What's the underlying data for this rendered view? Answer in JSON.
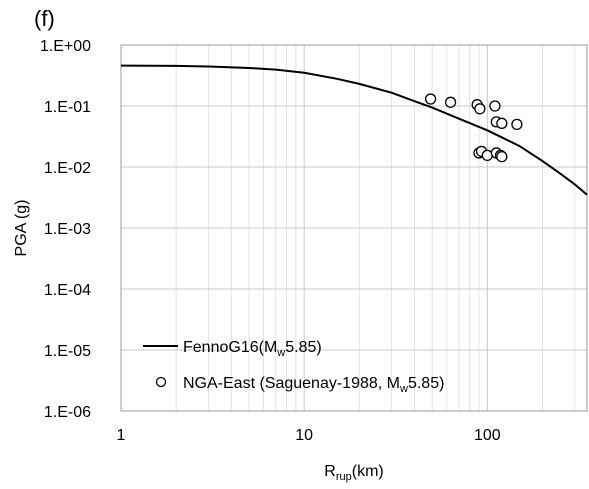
{
  "panel_label": "(f)",
  "chart_data": {
    "type": "scatter",
    "title": "",
    "xlabel": {
      "main": "R",
      "sub": "rup",
      "rest": "(km)"
    },
    "ylabel": "PGA (g)",
    "xscale": "log",
    "yscale": "log",
    "xlim": [
      1,
      350
    ],
    "ylim": [
      1e-06,
      1
    ],
    "x_ticks": [
      1,
      10,
      100
    ],
    "x_tick_labels": [
      "1",
      "10",
      "100"
    ],
    "y_ticks": [
      1,
      0.1,
      0.01,
      0.001,
      0.0001,
      1e-05,
      1e-06
    ],
    "y_tick_labels": [
      "1.E+00",
      "1.E-01",
      "1.E-02",
      "1.E-03",
      "1.E-04",
      "1.E-05",
      "1.E-06"
    ],
    "grid": true,
    "legend_position": "bottom-left",
    "series": [
      {
        "name": {
          "main": "FennoG16(M",
          "sub": "w",
          "rest": "5.85)"
        },
        "kind": "line",
        "color": "#000000",
        "x": [
          1,
          2,
          3,
          5,
          7,
          10,
          15,
          20,
          30,
          40,
          50,
          70,
          100,
          150,
          200,
          250,
          300,
          350
        ],
        "y": [
          0.46,
          0.455,
          0.445,
          0.42,
          0.395,
          0.35,
          0.28,
          0.23,
          0.165,
          0.12,
          0.094,
          0.062,
          0.04,
          0.022,
          0.0125,
          0.0078,
          0.0052,
          0.0035
        ]
      },
      {
        "name": {
          "main": "NGA-East (Saguenay-1988, M",
          "sub": "w",
          "rest": "5.85)"
        },
        "kind": "scatter",
        "marker": "open-circle",
        "color": "#000000",
        "x": [
          49,
          63,
          88,
          91,
          110,
          112,
          120,
          145,
          90,
          93,
          100,
          112,
          118,
          120
        ],
        "y": [
          0.13,
          0.115,
          0.105,
          0.09,
          0.1,
          0.055,
          0.052,
          0.05,
          0.017,
          0.018,
          0.0155,
          0.017,
          0.0155,
          0.0148
        ]
      }
    ]
  }
}
